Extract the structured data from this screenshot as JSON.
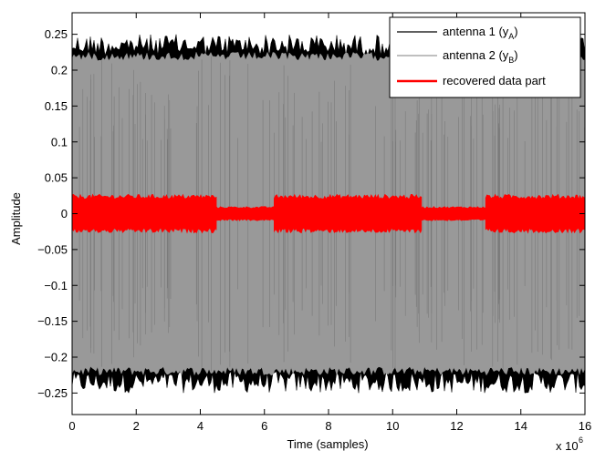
{
  "chart_data": {
    "type": "line",
    "title": "",
    "xlabel": "Time (samples)",
    "ylabel": "Amplitude",
    "x_exponent_label": "x 10",
    "x_exponent_power": "6",
    "xlim": [
      0,
      16
    ],
    "ylim": [
      -0.28,
      0.28
    ],
    "x_scale_factor": 1000000,
    "xticks": [
      0,
      2,
      4,
      6,
      8,
      10,
      12,
      14,
      16
    ],
    "xtick_labels": [
      "0",
      "2",
      "4",
      "6",
      "8",
      "10",
      "12",
      "14",
      "16"
    ],
    "yticks": [
      0.25,
      0.2,
      0.15,
      0.1,
      0.05,
      0,
      -0.05,
      -0.1,
      -0.15,
      -0.2,
      -0.25
    ],
    "ytick_labels": [
      "0.25",
      "0.2",
      "0.15",
      "0.1",
      "0.05",
      "0",
      "−0.05",
      "−0.1",
      "−0.15",
      "−0.2",
      "−0.25"
    ],
    "grid": false,
    "legend_position": "top-right",
    "series": [
      {
        "name": "antenna 1",
        "legend_base": "antenna 1 (y",
        "legend_sub": "A",
        "legend_close": ")",
        "color": "#000000",
        "kind": "envelope",
        "envelope_max": 0.25,
        "envelope_min": -0.25
      },
      {
        "name": "antenna 2",
        "legend_base": "antenna 2 (y",
        "legend_sub": "B",
        "legend_close": ")",
        "color": "#999999",
        "kind": "envelope",
        "envelope_max": 0.225,
        "envelope_min": -0.225
      },
      {
        "name": "recovered data part",
        "legend_base": "recovered data part",
        "legend_sub": "",
        "legend_close": "",
        "color": "#ff0000",
        "kind": "band",
        "segments": [
          {
            "x": [
              0,
              4.5
            ],
            "amp": 0.027
          },
          {
            "x": [
              4.5,
              6.3
            ],
            "amp": 0.01
          },
          {
            "x": [
              6.3,
              10.9
            ],
            "amp": 0.027
          },
          {
            "x": [
              10.9,
              12.9
            ],
            "amp": 0.01
          },
          {
            "x": [
              12.9,
              16
            ],
            "amp": 0.027
          }
        ]
      }
    ]
  }
}
